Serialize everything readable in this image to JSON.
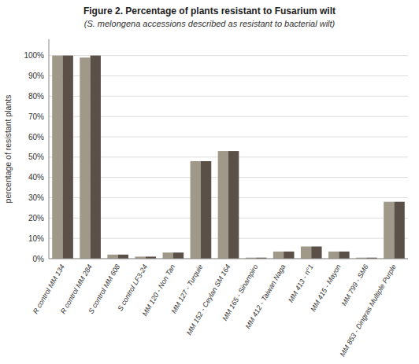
{
  "chart_data": {
    "type": "bar",
    "title": "Figure 2. Percentage of plants resistant to Fusarium wilt",
    "subtitle": "(S. melongena accessions described as resistant to bacterial wilt)",
    "y_label": "percentage of resistant plants",
    "categories": [
      "R control MM 134",
      "R control MM 284",
      "S control MM 608",
      "S control LF3-24",
      "MM 120 - Non Tan",
      "MM 127 - Turquie",
      "MM 152 - Ceylan SM 164",
      "MM 165 - Sinampiro",
      "MM 412 - Taiwan Naga",
      "MM 413 - n°1",
      "MM 415 - Mayon",
      "MM 799 - SM6",
      "MM 853 - Dingras Multiple Purple"
    ],
    "series": [
      {
        "color": "#a09888",
        "values": [
          100,
          99,
          2,
          1,
          3,
          48,
          53,
          0.5,
          3.5,
          6,
          3.5,
          0.5,
          28
        ]
      },
      {
        "color": "#5a5048",
        "values": [
          100,
          100,
          2,
          1,
          3,
          48,
          53,
          0.5,
          3.5,
          6,
          3.5,
          0.5,
          28
        ]
      }
    ],
    "ylim": [
      0,
      108
    ],
    "yticks": [
      {
        "value": 0,
        "label": "0%"
      },
      {
        "value": 10,
        "label": "10%"
      },
      {
        "value": 20,
        "label": "20%"
      },
      {
        "value": 30,
        "label": "30%"
      },
      {
        "value": 40,
        "label": "40%"
      },
      {
        "value": 50,
        "label": "50%"
      },
      {
        "value": 60,
        "label": "60%"
      },
      {
        "value": 70,
        "label": "70%"
      },
      {
        "value": 80,
        "label": "80%"
      },
      {
        "value": 90,
        "label": "90%"
      },
      {
        "value": 100,
        "label": "100%"
      }
    ],
    "grid": true
  }
}
